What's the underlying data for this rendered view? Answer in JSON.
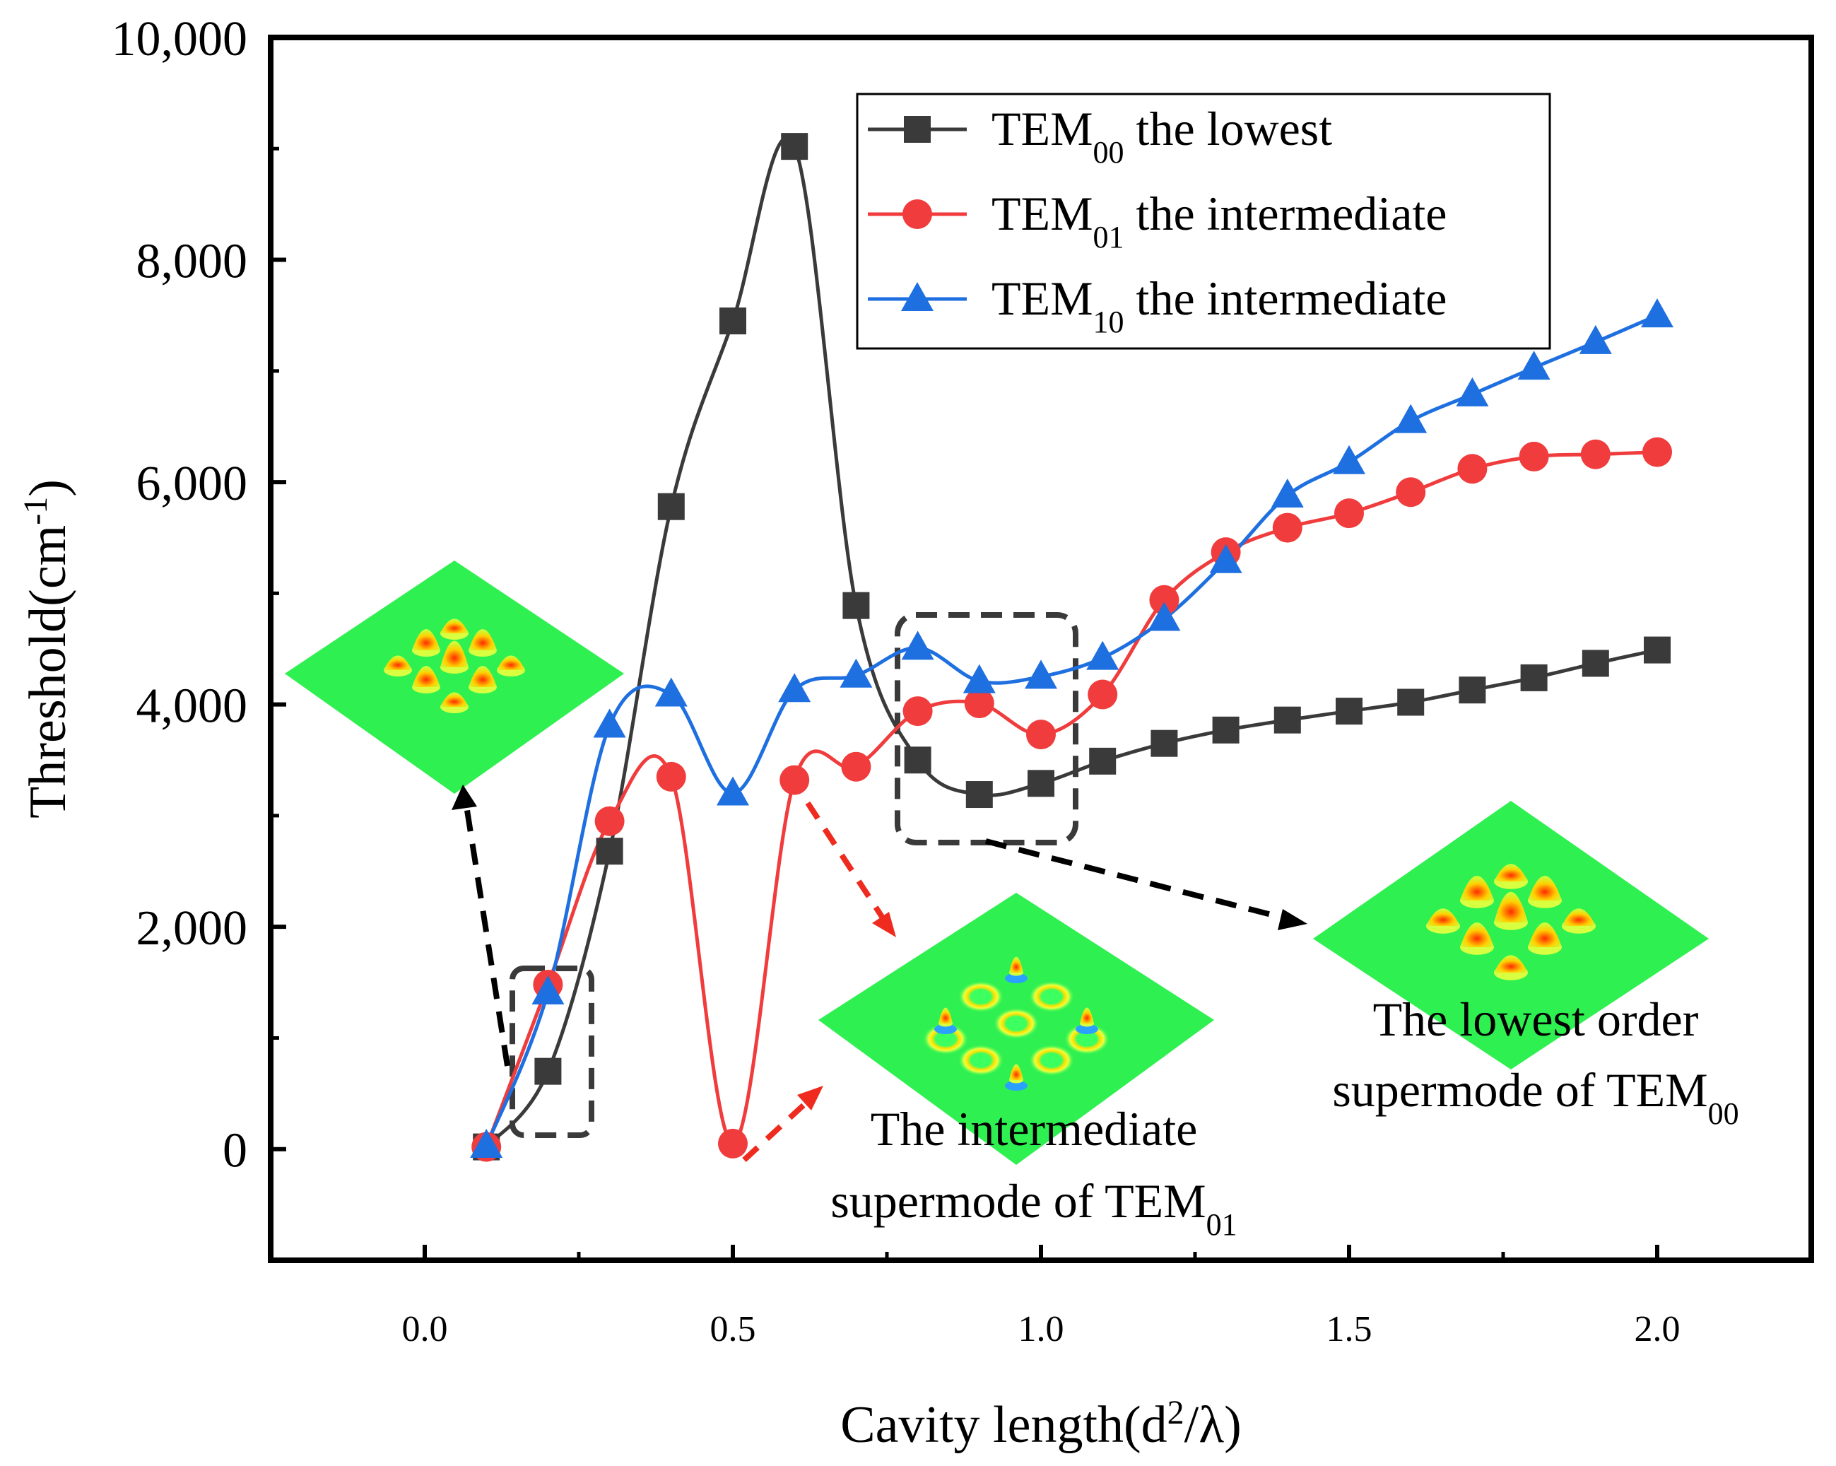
{
  "chart_data": {
    "type": "line",
    "title": "",
    "xlabel": "Cavity length(d²/λ)",
    "ylabel": "Threshold(cm⁻¹)",
    "xlim": [
      -0.25,
      2.25
    ],
    "ylim": [
      -1000,
      10000
    ],
    "xticks": [
      0.0,
      0.5,
      1.0,
      1.5,
      2.0
    ],
    "xtick_labels": [
      "0.0",
      "0.5",
      "1.0",
      "1.5",
      "2.0"
    ],
    "yticks": [
      0,
      2000,
      4000,
      6000,
      8000,
      10000
    ],
    "ytick_labels": [
      "0",
      "2,000",
      "4,000",
      "6,000",
      "8,000",
      "10,000"
    ],
    "grid": false,
    "legend_position": "top-right",
    "series": [
      {
        "name": "TEM00 the lowest",
        "legend_base": "TEM",
        "legend_sub": "00",
        "legend_rest": " the lowest",
        "color": "#3a3a3a",
        "marker": "square",
        "x": [
          0.1,
          0.2,
          0.3,
          0.4,
          0.5,
          0.6,
          0.7,
          0.8,
          0.9,
          1.0,
          1.1,
          1.2,
          1.3,
          1.4,
          1.5,
          1.6,
          1.7,
          1.8,
          1.9,
          2.0
        ],
        "y": [
          20,
          700,
          2680,
          5780,
          7450,
          9020,
          4890,
          3500,
          3190,
          3290,
          3490,
          3650,
          3770,
          3860,
          3940,
          4020,
          4130,
          4240,
          4370,
          4490
        ]
      },
      {
        "name": "TEM01 the intermediate",
        "legend_base": "TEM",
        "legend_sub": "01",
        "legend_rest": " the intermediate",
        "color": "#f03c3c",
        "marker": "circle",
        "x": [
          0.1,
          0.2,
          0.3,
          0.4,
          0.5,
          0.6,
          0.7,
          0.8,
          0.9,
          1.0,
          1.1,
          1.2,
          1.3,
          1.4,
          1.5,
          1.6,
          1.7,
          1.8,
          1.9,
          2.0
        ],
        "y": [
          20,
          1480,
          2950,
          3350,
          50,
          3320,
          3440,
          3940,
          4010,
          3730,
          4090,
          4940,
          5370,
          5590,
          5720,
          5910,
          6120,
          6230,
          6250,
          6270
        ]
      },
      {
        "name": "TEM10 the intermediate",
        "legend_base": "TEM",
        "legend_sub": "10",
        "legend_rest": " the intermediate",
        "color": "#1e6fe0",
        "marker": "triangle",
        "x": [
          0.1,
          0.2,
          0.3,
          0.4,
          0.5,
          0.6,
          0.7,
          0.8,
          0.9,
          1.0,
          1.1,
          1.2,
          1.3,
          1.4,
          1.5,
          1.6,
          1.7,
          1.8,
          1.9,
          2.0
        ],
        "y": [
          30,
          1410,
          3810,
          4090,
          3200,
          4130,
          4260,
          4510,
          4210,
          4250,
          4420,
          4770,
          5290,
          5880,
          6180,
          6550,
          6790,
          7030,
          7260,
          7500
        ]
      }
    ],
    "annotations": {
      "intermediate_line1": "The intermediate",
      "intermediate_line2_base": "supermode of TEM",
      "intermediate_line2_sub": "01",
      "lowest_line1": "The lowest order",
      "lowest_line2_base": "supermode of TEM",
      "lowest_line2_sub": "00"
    }
  }
}
